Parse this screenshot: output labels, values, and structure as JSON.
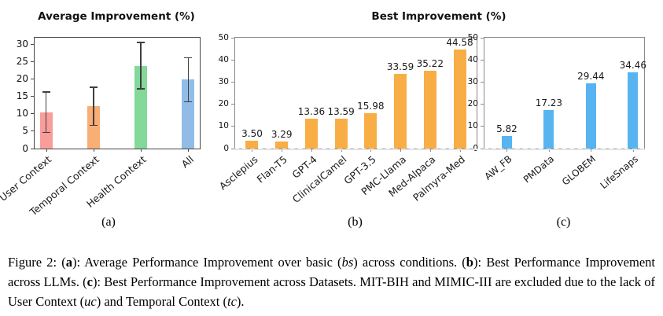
{
  "titles": {
    "average": "Average Improvement (%)",
    "best": "Best Improvement (%)"
  },
  "chart_data": [
    {
      "panel": "a",
      "type": "bar",
      "title": "Average Improvement (%)",
      "categories": [
        "User Context",
        "Temporal Context",
        "Health Context",
        "All"
      ],
      "values": [
        10.4,
        12.2,
        23.8,
        19.9
      ],
      "error_low": [
        4.7,
        6.7,
        17.2,
        13.5
      ],
      "error_high": [
        16.3,
        17.7,
        30.6,
        26.2
      ],
      "bar_colors": [
        "#f99d9b",
        "#f8ae74",
        "#82d999",
        "#92bce8"
      ],
      "ylim": [
        0,
        32
      ],
      "yticks": [
        0,
        5,
        10,
        15,
        20,
        25,
        30
      ],
      "grid": false,
      "legend": "none",
      "panel_label": "(a)"
    },
    {
      "panel": "b",
      "type": "bar",
      "title": "Best Improvement (%)",
      "categories": [
        "Asclepius",
        "Flan-T5",
        "GPT-4",
        "ClinicalCamel",
        "GPT-3.5",
        "PMC-Llama",
        "Med-Alpaca",
        "Palmyra-Med"
      ],
      "values": [
        3.5,
        3.29,
        13.36,
        13.59,
        15.98,
        33.59,
        35.22,
        44.58
      ],
      "value_labels": [
        "3.50",
        "3.29",
        "13.36",
        "13.59",
        "15.98",
        "33.59",
        "35.22",
        "44.58"
      ],
      "bar_color": "#f8ae45",
      "ylim": [
        0,
        50
      ],
      "yticks": [
        0,
        10,
        20,
        30,
        40,
        50
      ],
      "zero_line_dashed": true,
      "grid": false,
      "legend": "none",
      "panel_label": "(b)"
    },
    {
      "panel": "c",
      "type": "bar",
      "categories": [
        "AW_FB",
        "PMData",
        "GLOBEM",
        "LifeSnaps"
      ],
      "values": [
        5.82,
        17.23,
        29.44,
        34.46
      ],
      "value_labels": [
        "5.82",
        "17.23",
        "29.44",
        "34.46"
      ],
      "bar_color": "#57b4f0",
      "ylim": [
        0,
        50
      ],
      "yticks": [
        0,
        10,
        20,
        30,
        40,
        50
      ],
      "zero_line_dashed": true,
      "grid": false,
      "legend": "none",
      "panel_label": "(c)"
    }
  ],
  "caption": {
    "segments": [
      {
        "t": "Figure 2: ("
      },
      {
        "t": "a",
        "b": true
      },
      {
        "t": "): Average Performance Improvement over basic ("
      },
      {
        "t": "bs",
        "i": true
      },
      {
        "t": ") across conditions. ("
      },
      {
        "t": "b",
        "b": true
      },
      {
        "t": "): Best Performance Improvement across LLMs. ("
      },
      {
        "t": "c",
        "b": true
      },
      {
        "t": "): Best Performance Improvement across Datasets. MIT-BIH and MIMIC-III are excluded due to the lack of User Context ("
      },
      {
        "t": "uc",
        "i": true
      },
      {
        "t": ") and Temporal Context ("
      },
      {
        "t": "tc",
        "i": true
      },
      {
        "t": ")."
      }
    ]
  }
}
